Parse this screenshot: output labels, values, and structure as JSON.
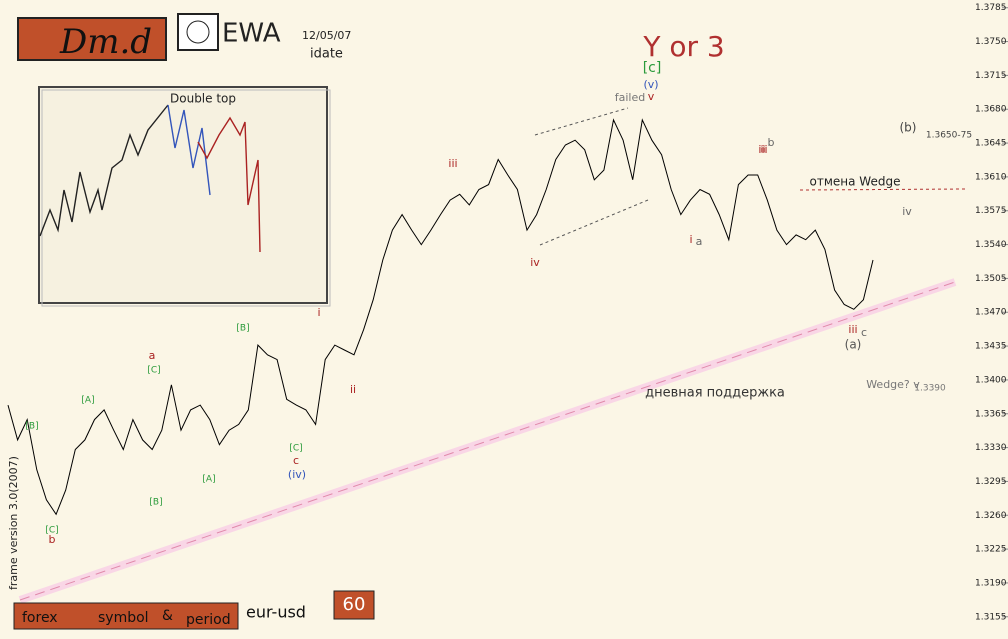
{
  "header": {
    "logo": "Dm.d",
    "site": "EWA",
    "date": "12/05/07",
    "date_label": "idate",
    "market": "forex",
    "symbol_label": "symbol",
    "and": "&",
    "period_label": "period",
    "symbol": "eur-usd",
    "period": "60",
    "version": "frame version 3.0(2007)"
  },
  "inset": {
    "title": "Double top"
  },
  "chart_data": {
    "type": "line",
    "color": "#000000",
    "ylim": [
      1.3132,
      1.3793
    ],
    "yticks": [
      1.3785,
      {
        "value": 1.375,
        "label": "1.3750"
      },
      1.3715,
      {
        "value": 1.368,
        "label": "1.3680"
      },
      1.3645,
      {
        "value": 1.361,
        "label": "1.3610"
      },
      1.3575,
      {
        "value": 1.354,
        "label": "1.3540"
      },
      1.3505,
      {
        "value": 1.347,
        "label": "1.3470"
      },
      1.3435,
      {
        "value": 1.34,
        "label": "1.3400"
      },
      1.3365,
      {
        "value": 1.333,
        "label": "1.3330"
      },
      1.3295,
      {
        "value": 1.326,
        "label": "1.3260"
      },
      1.3225,
      {
        "value": 1.319,
        "label": "1.3190"
      },
      1.3155
    ],
    "values": [
      1.3374,
      1.3338,
      1.3359,
      1.3307,
      1.3276,
      1.3261,
      1.3286,
      1.3328,
      1.3338,
      1.3359,
      1.3369,
      1.3348,
      1.3328,
      1.3359,
      1.3338,
      1.3328,
      1.3348,
      1.3395,
      1.3348,
      1.3369,
      1.3374,
      1.3359,
      1.3333,
      1.3348,
      1.3354,
      1.3369,
      1.3436,
      1.3426,
      1.3421,
      1.338,
      1.3374,
      1.3369,
      1.3354,
      1.3421,
      1.3436,
      1.3431,
      1.3426,
      1.3452,
      1.3483,
      1.3524,
      1.3555,
      1.3571,
      1.3555,
      1.354,
      1.3555,
      1.3571,
      1.3586,
      1.3592,
      1.3581,
      1.3597,
      1.3602,
      1.3628,
      1.3612,
      1.3597,
      1.3555,
      1.3571,
      1.3597,
      1.3628,
      1.3643,
      1.3648,
      1.3638,
      1.3607,
      1.3617,
      1.3669,
      1.3648,
      1.3607,
      1.3669,
      1.3648,
      1.3633,
      1.3597,
      1.3571,
      1.3586,
      1.3597,
      1.3592,
      1.3571,
      1.3545,
      1.3602,
      1.3612,
      1.3612,
      1.3586,
      1.3555,
      1.354,
      1.355,
      1.3545,
      1.3555,
      1.3535,
      1.3493,
      1.3478,
      1.3473,
      1.3483,
      1.3524
    ],
    "annotations": [
      "Y or 3",
      "[c]",
      "(v)",
      "v",
      "failed",
      "iii",
      "iv",
      "i",
      "ii",
      "iii",
      "i",
      "a",
      "ii",
      "b",
      "iii",
      "c",
      "(a)",
      "(b)",
      "1.3650-75",
      "отмена Wedge",
      "iv",
      "Wedge? v",
      "1.3390",
      "дневная поддержка",
      "[B]",
      "[C]",
      "b",
      "[A]",
      "[A]",
      "[B]",
      "[C]",
      "a",
      "[B]",
      "[C]",
      "c",
      "(iv)"
    ]
  }
}
